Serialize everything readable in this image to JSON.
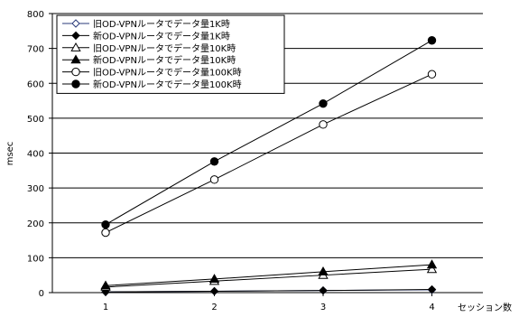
{
  "chart_data": {
    "type": "line",
    "xlabel": "セッション数",
    "ylabel": "msec",
    "x": [
      1,
      2,
      3,
      4
    ],
    "x_ticks": [
      "1",
      "2",
      "3",
      "4"
    ],
    "ylim": [
      0,
      800
    ],
    "y_ticks": [
      "0",
      "100",
      "200",
      "300",
      "400",
      "500",
      "600",
      "700",
      "800"
    ],
    "grid": "horizontal",
    "legend_position": "top-left",
    "series": [
      {
        "name": "旧OD-VPNルータでデータ量1K時",
        "marker": "diamond-open",
        "line_color": "#2a3a7a",
        "values": [
          2,
          4,
          6,
          8
        ]
      },
      {
        "name": "新OD-VPNルータでデータ量1K時",
        "marker": "diamond-filled",
        "line_color": "#000000",
        "values": [
          2,
          4,
          6,
          9
        ]
      },
      {
        "name": "旧OD-VPNルータでデータ量10K時",
        "marker": "triangle-open",
        "line_color": "#000000",
        "values": [
          16,
          33,
          50,
          67
        ]
      },
      {
        "name": "新OD-VPNルータでデータ量10K時",
        "marker": "triangle-filled",
        "line_color": "#000000",
        "values": [
          20,
          39,
          60,
          80
        ]
      },
      {
        "name": "旧OD-VPNルータでデータ量100K時",
        "marker": "circle-open",
        "line_color": "#000000",
        "values": [
          172,
          324,
          482,
          626
        ]
      },
      {
        "name": "新OD-VPNルータでデータ量100K時",
        "marker": "circle-filled",
        "line_color": "#000000",
        "values": [
          195,
          376,
          542,
          723
        ]
      }
    ]
  }
}
